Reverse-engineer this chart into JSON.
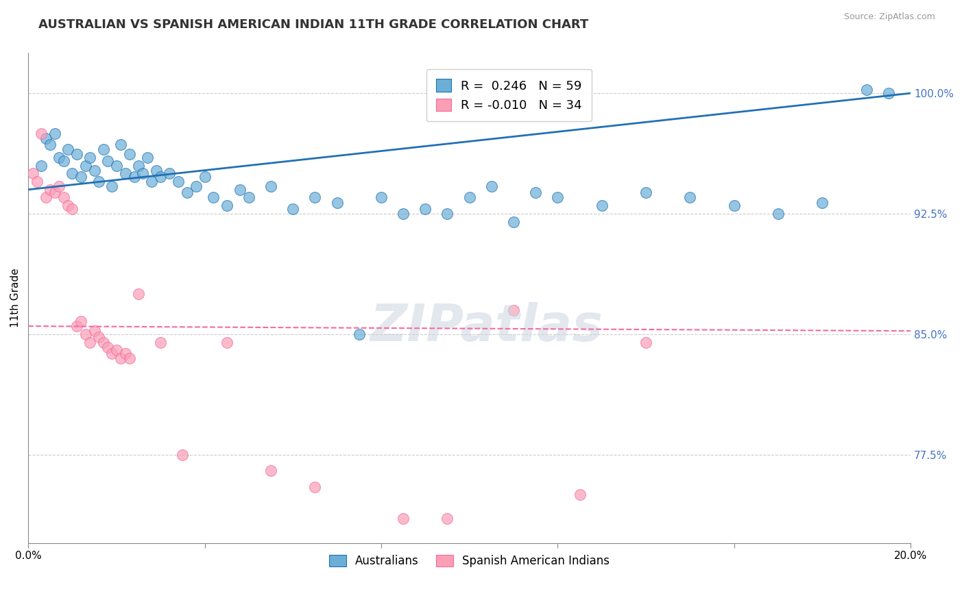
{
  "title": "AUSTRALIAN VS SPANISH AMERICAN INDIAN 11TH GRADE CORRELATION CHART",
  "source": "Source: ZipAtlas.com",
  "ylabel": "11th Grade",
  "watermark": "ZIPatlas",
  "legend_blue_r": "R =  0.246",
  "legend_blue_n": "N = 59",
  "legend_pink_r": "R = -0.010",
  "legend_pink_n": "N = 34",
  "legend_label_blue": "Australians",
  "legend_label_pink": "Spanish American Indians",
  "yticks": [
    "77.5%",
    "85.0%",
    "92.5%",
    "100.0%"
  ],
  "ytick_values": [
    77.5,
    85.0,
    92.5,
    100.0
  ],
  "xlim": [
    0.0,
    20.0
  ],
  "ylim": [
    72.0,
    102.5
  ],
  "color_blue": "#6baed6",
  "color_pink": "#fa9fb5",
  "line_blue": "#2171b5",
  "line_pink": "#f768a1",
  "blue_points_x": [
    0.3,
    0.4,
    0.5,
    0.6,
    0.7,
    0.8,
    0.9,
    1.0,
    1.1,
    1.2,
    1.3,
    1.4,
    1.5,
    1.6,
    1.7,
    1.8,
    1.9,
    2.0,
    2.1,
    2.2,
    2.3,
    2.4,
    2.5,
    2.6,
    2.7,
    2.8,
    2.9,
    3.0,
    3.2,
    3.4,
    3.6,
    3.8,
    4.0,
    4.2,
    4.5,
    4.8,
    5.0,
    5.5,
    6.0,
    6.5,
    7.0,
    7.5,
    8.0,
    8.5,
    9.0,
    9.5,
    10.0,
    10.5,
    11.0,
    11.5,
    12.0,
    13.0,
    14.0,
    15.0,
    16.0,
    17.0,
    18.0,
    19.0,
    19.5
  ],
  "blue_points_y": [
    95.5,
    97.2,
    96.8,
    97.5,
    96.0,
    95.8,
    96.5,
    95.0,
    96.2,
    94.8,
    95.5,
    96.0,
    95.2,
    94.5,
    96.5,
    95.8,
    94.2,
    95.5,
    96.8,
    95.0,
    96.2,
    94.8,
    95.5,
    95.0,
    96.0,
    94.5,
    95.2,
    94.8,
    95.0,
    94.5,
    93.8,
    94.2,
    94.8,
    93.5,
    93.0,
    94.0,
    93.5,
    94.2,
    92.8,
    93.5,
    93.2,
    85.0,
    93.5,
    92.5,
    92.8,
    92.5,
    93.5,
    94.2,
    92.0,
    93.8,
    93.5,
    93.0,
    93.8,
    93.5,
    93.0,
    92.5,
    93.2,
    100.2,
    100.0
  ],
  "pink_points_x": [
    0.1,
    0.2,
    0.3,
    0.4,
    0.5,
    0.6,
    0.7,
    0.8,
    0.9,
    1.0,
    1.1,
    1.2,
    1.3,
    1.4,
    1.5,
    1.6,
    1.7,
    1.8,
    1.9,
    2.0,
    2.1,
    2.2,
    2.3,
    2.5,
    3.0,
    3.5,
    4.5,
    5.5,
    6.5,
    8.5,
    9.5,
    11.0,
    12.5,
    14.0
  ],
  "pink_points_y": [
    95.0,
    94.5,
    97.5,
    93.5,
    94.0,
    93.8,
    94.2,
    93.5,
    93.0,
    92.8,
    85.5,
    85.8,
    85.0,
    84.5,
    85.2,
    84.8,
    84.5,
    84.2,
    83.8,
    84.0,
    83.5,
    83.8,
    83.5,
    87.5,
    84.5,
    77.5,
    84.5,
    76.5,
    75.5,
    73.5,
    73.5,
    86.5,
    75.0,
    84.5
  ],
  "pink_line_slope": -0.015,
  "pink_line_intercept": 85.5,
  "blue_line_x": [
    0.0,
    20.0
  ],
  "blue_line_y": [
    94.0,
    100.0
  ]
}
